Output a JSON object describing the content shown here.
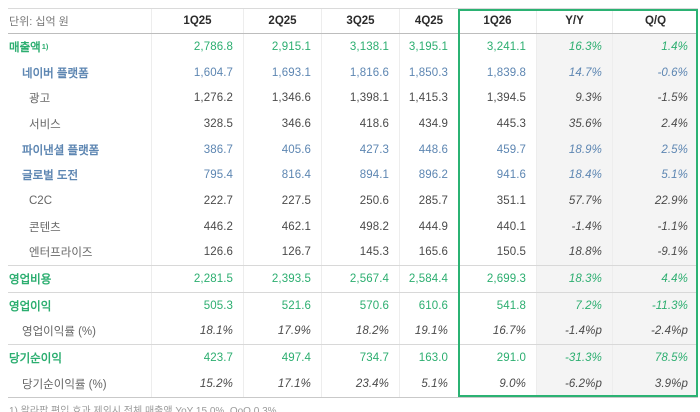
{
  "colors": {
    "green": "#2cae70",
    "blue": "#5d86b2",
    "column_bg": "#f4f4f4",
    "box_border": "#2bb273"
  },
  "table": {
    "unit_label": "단위: 십억 원",
    "columns": [
      "1Q25",
      "2Q25",
      "3Q25",
      "4Q25",
      "1Q26",
      "Y/Y",
      "Q/Q"
    ],
    "highlighted_columns": [
      "1Q26",
      "Y/Y",
      "Q/Q"
    ],
    "rows": [
      {
        "label": "매출액",
        "sup": "1)",
        "style": "green",
        "indent": 0,
        "values": [
          "2,786.8",
          "2,915.1",
          "3,138.1",
          "3,195.1",
          "3,241.1",
          "16.3%",
          "1.4%"
        ]
      },
      {
        "label": "네이버 플랫폼",
        "style": "blue",
        "indent": 1,
        "values": [
          "1,604.7",
          "1,693.1",
          "1,816.6",
          "1,850.3",
          "1,839.8",
          "14.7%",
          "-0.6%"
        ]
      },
      {
        "label": "광고",
        "style": "plain",
        "indent": 2,
        "values": [
          "1,276.2",
          "1,346.6",
          "1,398.1",
          "1,415.3",
          "1,394.5",
          "9.3%",
          "-1.5%"
        ]
      },
      {
        "label": "서비스",
        "style": "plain",
        "indent": 2,
        "values": [
          "328.5",
          "346.6",
          "418.6",
          "434.9",
          "445.3",
          "35.6%",
          "2.4%"
        ]
      },
      {
        "label": "파이낸셜 플랫폼",
        "style": "blue",
        "indent": 1,
        "values": [
          "386.7",
          "405.6",
          "427.3",
          "448.6",
          "459.7",
          "18.9%",
          "2.5%"
        ]
      },
      {
        "label": "글로벌 도전",
        "style": "blue",
        "indent": 1,
        "values": [
          "795.4",
          "816.4",
          "894.1",
          "896.2",
          "941.6",
          "18.4%",
          "5.1%"
        ]
      },
      {
        "label": "C2C",
        "style": "plain",
        "indent": 2,
        "values": [
          "222.7",
          "227.5",
          "250.6",
          "285.7",
          "351.1",
          "57.7%",
          "22.9%"
        ]
      },
      {
        "label": "콘텐츠",
        "style": "plain",
        "indent": 2,
        "values": [
          "446.2",
          "462.1",
          "498.2",
          "444.9",
          "440.1",
          "-1.4%",
          "-1.1%"
        ]
      },
      {
        "label": "엔터프라이즈",
        "style": "plain",
        "indent": 2,
        "values": [
          "126.6",
          "126.7",
          "145.3",
          "165.6",
          "150.5",
          "18.8%",
          "-9.1%"
        ]
      },
      {
        "label": "영업비용",
        "style": "green",
        "indent": 0,
        "separator": true,
        "values": [
          "2,281.5",
          "2,393.5",
          "2,567.4",
          "2,584.4",
          "2,699.3",
          "18.3%",
          "4.4%"
        ]
      },
      {
        "label": "영업이익",
        "style": "green",
        "indent": 0,
        "separator": true,
        "values": [
          "505.3",
          "521.6",
          "570.6",
          "610.6",
          "541.8",
          "7.2%",
          "-11.3%"
        ]
      },
      {
        "label": "영업이익률 (%)",
        "style": "ratio",
        "indent": 1,
        "values": [
          "18.1%",
          "17.9%",
          "18.2%",
          "19.1%",
          "16.7%",
          "-1.4%p",
          "-2.4%p"
        ]
      },
      {
        "label": "당기순이익",
        "style": "green",
        "indent": 0,
        "separator": true,
        "values": [
          "423.7",
          "497.4",
          "734.7",
          "163.0",
          "291.0",
          "-31.3%",
          "78.5%"
        ]
      },
      {
        "label": "당기순이익률 (%)",
        "style": "ratio",
        "indent": 1,
        "values": [
          "15.2%",
          "17.1%",
          "23.4%",
          "5.1%",
          "9.0%",
          "-6.2%p",
          "3.9%p"
        ]
      }
    ]
  },
  "footnote": "1) 왈라팝 편입 효과 제외시 전체 매출액 YoY 15.0%, QoQ 0.3%"
}
